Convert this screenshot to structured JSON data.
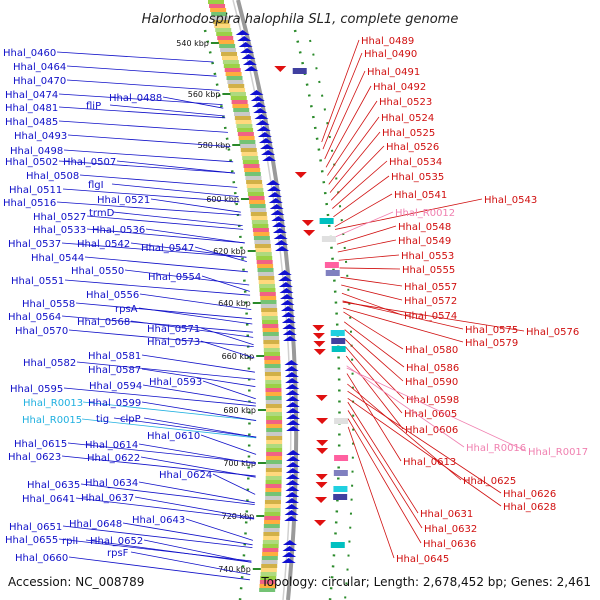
{
  "title": "Halorhodospira halophila SL1, complete genome",
  "accession": "Accession: NC_008789",
  "topology": "Topology: circular; Length: 2,678,452 bp; Genes: 2,461",
  "colors": {
    "left_label": "#1010c8",
    "left_label_light": "#20b0e0",
    "right_label": "#d01010",
    "right_label_light": "#f080b0",
    "backbone": "#9a9a9a",
    "dots": "#2a8a2a",
    "forward_arrow": "#1010d0",
    "reverse_arrow": "#e01010"
  },
  "kbp_ticks": [
    "540 kbp",
    "560 kbp",
    "580 kbp",
    "600 kbp",
    "620 kbp",
    "640 kbp",
    "660 kbp",
    "680 kbp",
    "700 kbp",
    "720 kbp",
    "740 kbp"
  ],
  "left_labels": [
    {
      "text": "Hhal_0460"
    },
    {
      "text": "Hhal_0464"
    },
    {
      "text": "Hhal_0470"
    },
    {
      "text": "Hhal_0474"
    },
    {
      "text": "Hhal_0481"
    },
    {
      "text": "fliP"
    },
    {
      "text": "Hhal_0488"
    },
    {
      "text": "Hhal_0485"
    },
    {
      "text": "Hhal_0493"
    },
    {
      "text": "Hhal_0498"
    },
    {
      "text": "Hhal_0502"
    },
    {
      "text": "Hhal_0507"
    },
    {
      "text": "Hhal_0508"
    },
    {
      "text": "flgI"
    },
    {
      "text": "Hhal_0511"
    },
    {
      "text": "Hhal_0516"
    },
    {
      "text": "Hhal_0521"
    },
    {
      "text": "Hhal_0527"
    },
    {
      "text": "trmD"
    },
    {
      "text": "Hhal_0533"
    },
    {
      "text": "Hhal_0536"
    },
    {
      "text": "Hhal_0537"
    },
    {
      "text": "Hhal_0542"
    },
    {
      "text": "Hhal_0547"
    },
    {
      "text": "Hhal_0544"
    },
    {
      "text": "Hhal_0550"
    },
    {
      "text": "Hhal_0551"
    },
    {
      "text": "Hhal_0554"
    },
    {
      "text": "Hhal_0556"
    },
    {
      "text": "Hhal_0558"
    },
    {
      "text": "rpsA"
    },
    {
      "text": "Hhal_0564"
    },
    {
      "text": "Hhal_0568"
    },
    {
      "text": "Hhal_0570"
    },
    {
      "text": "Hhal_0571"
    },
    {
      "text": "Hhal_0573"
    },
    {
      "text": "Hhal_0581"
    },
    {
      "text": "Hhal_0582"
    },
    {
      "text": "Hhal_0587"
    },
    {
      "text": "Hhal_0593"
    },
    {
      "text": "Hhal_0595"
    },
    {
      "text": "Hhal_0594"
    },
    {
      "text": "Hhal_R0013"
    },
    {
      "text": "Hhal_0599"
    },
    {
      "text": "Hhal_R0015"
    },
    {
      "text": "tig"
    },
    {
      "text": "clpP"
    },
    {
      "text": "Hhal_0610"
    },
    {
      "text": "Hhal_0615"
    },
    {
      "text": "Hhal_0614"
    },
    {
      "text": "Hhal_0623"
    },
    {
      "text": "Hhal_0622"
    },
    {
      "text": "Hhal_0624"
    },
    {
      "text": "Hhal_0635"
    },
    {
      "text": "Hhal_0634"
    },
    {
      "text": "Hhal_0641"
    },
    {
      "text": "Hhal_0637"
    },
    {
      "text": "Hhal_0643"
    },
    {
      "text": "Hhal_0651"
    },
    {
      "text": "Hhal_0648"
    },
    {
      "text": "Hhal_0655"
    },
    {
      "text": "rplI"
    },
    {
      "text": "Hhal_0652"
    },
    {
      "text": "rpsF"
    },
    {
      "text": "Hhal_0660"
    }
  ],
  "right_labels": [
    {
      "text": "Hhal_0489"
    },
    {
      "text": "Hhal_0490"
    },
    {
      "text": "Hhal_0491"
    },
    {
      "text": "Hhal_0492"
    },
    {
      "text": "Hhal_0523"
    },
    {
      "text": "Hhal_0524"
    },
    {
      "text": "Hhal_0525"
    },
    {
      "text": "Hhal_0526"
    },
    {
      "text": "Hhal_0534"
    },
    {
      "text": "Hhal_0535"
    },
    {
      "text": "Hhal_0541"
    },
    {
      "text": "Hhal_0543"
    },
    {
      "text": "Hhal_R0012"
    },
    {
      "text": "Hhal_0548"
    },
    {
      "text": "Hhal_0549"
    },
    {
      "text": "Hhal_0553"
    },
    {
      "text": "Hhal_0555"
    },
    {
      "text": "Hhal_0557"
    },
    {
      "text": "Hhal_0572"
    },
    {
      "text": "Hhal_0574"
    },
    {
      "text": "Hhal_0575"
    },
    {
      "text": "Hhal_0576"
    },
    {
      "text": "Hhal_0579"
    },
    {
      "text": "Hhal_0580"
    },
    {
      "text": "Hhal_0586"
    },
    {
      "text": "Hhal_0590"
    },
    {
      "text": "Hhal_0598"
    },
    {
      "text": "Hhal_0605"
    },
    {
      "text": "Hhal_0606"
    },
    {
      "text": "Hhal_R0016"
    },
    {
      "text": "Hhal_R0017"
    },
    {
      "text": "Hhal_0613"
    },
    {
      "text": "Hhal_0625"
    },
    {
      "text": "Hhal_0626"
    },
    {
      "text": "Hhal_0628"
    },
    {
      "text": "Hhal_0631"
    },
    {
      "text": "Hhal_0632"
    },
    {
      "text": "Hhal_0636"
    },
    {
      "text": "Hhal_0645"
    }
  ]
}
